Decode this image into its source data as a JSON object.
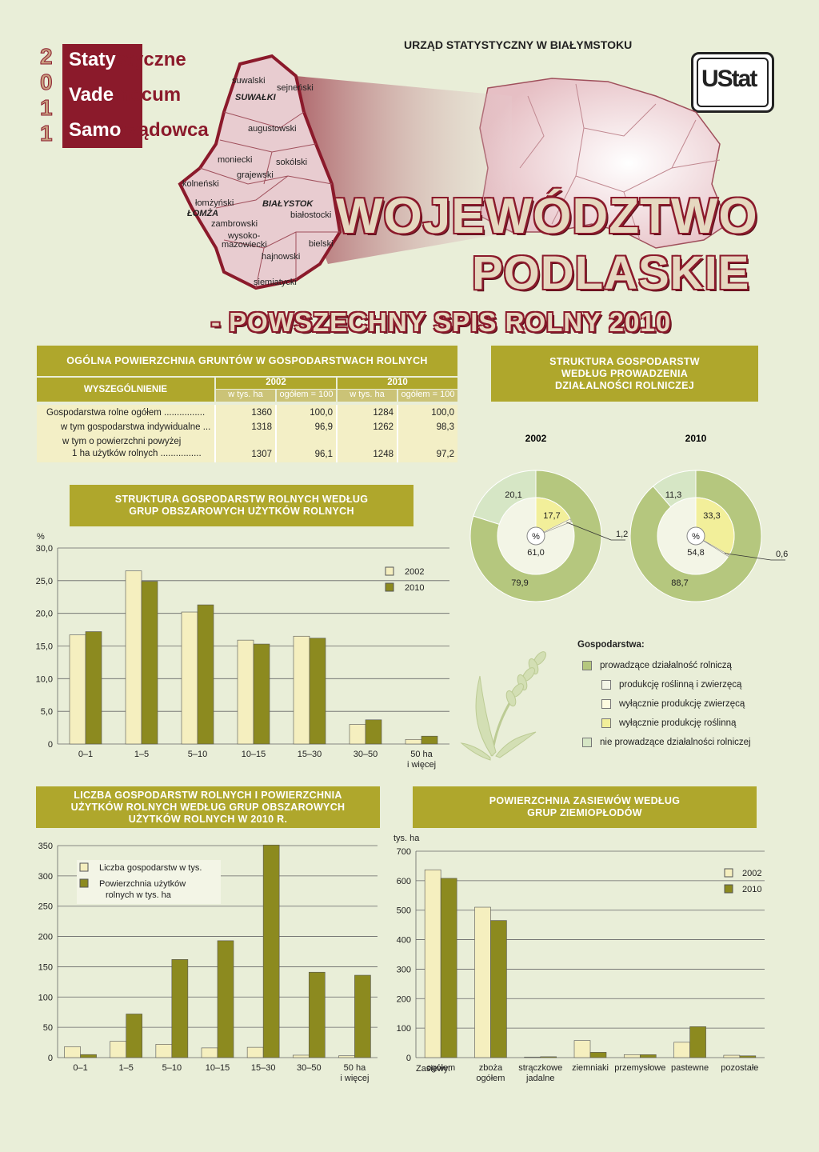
{
  "header": {
    "year_digits": [
      "2",
      "0",
      "1",
      "1"
    ],
    "logo_words": [
      [
        "Staty",
        "styczne"
      ],
      [
        "Vade",
        "mecum"
      ],
      [
        "Samo",
        "rządowca"
      ]
    ],
    "office": "URZĄD STATYSTYCZNY W BIAŁYMSTOKU",
    "ustat_logo": "UStat",
    "title_line1": "WOJEWÓDZTWO",
    "title_line2": "PODLASKIE",
    "title_line3": "- POWSZECHNY SPIS ROLNY 2010"
  },
  "map": {
    "labels": [
      "suwalski",
      "sejneński",
      "SUWAŁKI",
      "augustowski",
      "moniecki",
      "sokólski",
      "grajewski",
      "kolneński",
      "łomżyński",
      "ŁOMŻA",
      "BIAŁYSTOK",
      "białostocki",
      "zambrowski",
      "wysoko-",
      "mazowiecki",
      "bielski",
      "hajnowski",
      "siemiatycki"
    ]
  },
  "table1": {
    "title": "OGÓLNA POWIERZCHNIA GRUNTÓW W GOSPODARSTWACH ROLNYCH",
    "head": "WYSZEGÓLNIENIE",
    "y2002": "2002",
    "y2010": "2010",
    "sub1": "w tys. ha",
    "sub2": "ogółem = 100",
    "rows": [
      {
        "label": "Gospodarstwa rolne ogółem ................",
        "v": [
          "1360",
          "100,0",
          "1284",
          "100,0"
        ]
      },
      {
        "label": "w tym gospodarstwa indywidualne ...",
        "v": [
          "1318",
          "96,9",
          "1262",
          "98,3"
        ]
      },
      {
        "label": "w tym o powierzchni powyżej",
        "label2": "1 ha użytków rolnych ................",
        "v": [
          "1307",
          "96,1",
          "1248",
          "97,2"
        ]
      }
    ]
  },
  "pies": {
    "title": "STRUKTURA GOSPODARSTW WEDŁUG PROWADZENIA DZIAŁALNOŚCI ROLNICZEJ",
    "center": "%",
    "colors": {
      "outer_green": "#b5c77e",
      "inner_light": "#eef3e2",
      "yellow": "#f2ef9a",
      "mixed_light": "#f3f5e6",
      "not_farming": "#d6e6c5"
    },
    "chart_data": [
      {
        "type": "pie",
        "title": "2002",
        "outer": {
          "prowadzące": 79.9,
          "nie prowadzące": 20.1
        },
        "inner": {
          "roślinną i zwierzęcą": 61.0,
          "zwierzęcą": 1.2,
          "roślinną": 17.7
        },
        "labels": {
          "outer_big": "79,9",
          "outer_small": "20,1",
          "inner_mixed": "61,0",
          "inner_plant": "17,7",
          "inner_animal": "1,2"
        }
      },
      {
        "type": "pie",
        "title": "2010",
        "outer": {
          "prowadzące": 88.7,
          "nie prowadzące": 11.3
        },
        "inner": {
          "roślinną i zwierzęcą": 54.8,
          "zwierzęcą": 0.6,
          "roślinną": 33.3
        },
        "labels": {
          "outer_big": "88,7",
          "outer_small": "11,3",
          "inner_mixed": "54,8",
          "inner_plant": "33,3",
          "inner_animal": "0,6"
        }
      }
    ]
  },
  "legend_pie": {
    "title": "Gospodarstwa:",
    "items": [
      "prowadzące działalność rolniczą",
      "produkcję roślinną i zwierzęcą",
      "wyłącznie produkcję zwierzęcą",
      "wyłącznie produkcję roślinną",
      "nie prowadzące działalności rolniczej"
    ]
  },
  "chart1": {
    "title": "STRUKTURA GOSPODARSTW ROLNYCH WEDŁUG GRUP OBSZAROWYCH UŻYTKÓW ROLNYCH",
    "unit": "%",
    "chart_data": {
      "type": "bar",
      "categories": [
        "0–1",
        "1–5",
        "5–10",
        "10–15",
        "15–30",
        "30–50",
        "50 ha|i więcej"
      ],
      "series": [
        {
          "name": "2002",
          "values": [
            16.7,
            26.5,
            20.2,
            15.9,
            16.5,
            3.0,
            0.7
          ]
        },
        {
          "name": "2010",
          "values": [
            17.2,
            24.9,
            21.3,
            15.3,
            16.2,
            3.7,
            1.2
          ]
        }
      ],
      "ylim": [
        0,
        30
      ],
      "yticks": [
        "0",
        "5,0",
        "10,0",
        "15,0",
        "20,0",
        "25,0",
        "30,0"
      ]
    }
  },
  "chart2": {
    "title": "LICZBA GOSPODARSTW ROLNYCH I POWIERZCHNIA UŻYTKÓW ROLNYCH WEDŁUG GRUP OBSZAROWYCH UŻYTKÓW ROLNYCH W 2010 R.",
    "chart_data": {
      "type": "bar",
      "categories": [
        "0–1",
        "1–5",
        "5–10",
        "10–15",
        "15–30",
        "30–50",
        "50 ha|i więcej"
      ],
      "series": [
        {
          "name": "Liczba gospodarstw w tys.",
          "values": [
            18,
            27,
            22,
            16,
            17,
            4,
            3
          ]
        },
        {
          "name": "Powierzchnia użytków|rolnych w tys. ha",
          "values": [
            5,
            72,
            162,
            193,
            351,
            141,
            136
          ]
        }
      ],
      "ylim": [
        0,
        350
      ],
      "yticks": [
        "0",
        "50",
        "100",
        "150",
        "200",
        "250",
        "300",
        "350"
      ]
    }
  },
  "chart3": {
    "title": "POWIERZCHNIA ZASIEWÓW WEDŁUG GRUP ZIEMIOPŁODÓW",
    "unit": "tys. ha",
    "xprefix": "Zasiewy:",
    "chart_data": {
      "type": "bar",
      "categories": [
        "ogółem",
        "zboża|ogółem",
        "strączkowe|jadalne",
        "ziemniaki",
        "przemysłowe",
        "pastewne",
        "pozostałe"
      ],
      "series": [
        {
          "name": "2002",
          "values": [
            637,
            510,
            2,
            58,
            10,
            52,
            8
          ]
        },
        {
          "name": "2010",
          "values": [
            608,
            465,
            3,
            18,
            10,
            105,
            6
          ]
        }
      ],
      "ylim": [
        0,
        700
      ],
      "yticks": [
        "0",
        "100",
        "200",
        "300",
        "400",
        "500",
        "600",
        "700"
      ]
    }
  },
  "colors": {
    "light": "#f5efbf",
    "dark": "#8c8a1f",
    "olive": "#afa72c",
    "maroon": "#8b1a2b"
  }
}
